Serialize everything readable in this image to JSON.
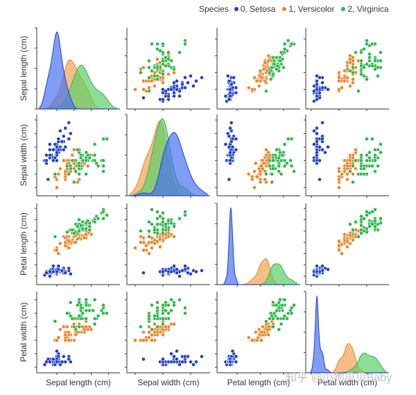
{
  "chart_data": {
    "type": "scatter",
    "subtype": "pairplot",
    "variables": [
      "Sepal length (cm)",
      "Sepal width (cm)",
      "Petal length (cm)",
      "Petal width (cm)"
    ],
    "diagonal": "kde",
    "legend": {
      "title": "Species",
      "placement": "top-right",
      "entries": [
        {
          "label": "0, Setosa",
          "color": "#1f3fcc"
        },
        {
          "label": "1, Versicolor",
          "color": "#e8862a"
        },
        {
          "label": "2, Virginica",
          "color": "#2db84a"
        }
      ]
    },
    "kde_fill_colors": [
      "#4a72f0",
      "#f4a154",
      "#5ccf6a"
    ],
    "axis_ranges": [
      [
        4.0,
        8.5
      ],
      [
        1.8,
        4.6
      ],
      [
        0.5,
        7.2
      ],
      [
        -0.1,
        2.7
      ]
    ],
    "series": [
      {
        "name": "0, Setosa",
        "points": [
          [
            5.1,
            3.5,
            1.4,
            0.2
          ],
          [
            4.9,
            3.0,
            1.4,
            0.2
          ],
          [
            4.7,
            3.2,
            1.3,
            0.2
          ],
          [
            4.6,
            3.1,
            1.5,
            0.2
          ],
          [
            5.0,
            3.6,
            1.4,
            0.2
          ],
          [
            5.4,
            3.9,
            1.7,
            0.4
          ],
          [
            4.6,
            3.4,
            1.4,
            0.3
          ],
          [
            5.0,
            3.4,
            1.5,
            0.2
          ],
          [
            4.4,
            2.9,
            1.4,
            0.2
          ],
          [
            4.9,
            3.1,
            1.5,
            0.1
          ],
          [
            5.4,
            3.7,
            1.5,
            0.2
          ],
          [
            4.8,
            3.4,
            1.6,
            0.2
          ],
          [
            4.8,
            3.0,
            1.4,
            0.1
          ],
          [
            4.3,
            3.0,
            1.1,
            0.1
          ],
          [
            5.8,
            4.0,
            1.2,
            0.2
          ],
          [
            5.7,
            4.4,
            1.5,
            0.4
          ],
          [
            5.4,
            3.9,
            1.3,
            0.4
          ],
          [
            5.1,
            3.5,
            1.4,
            0.3
          ],
          [
            5.7,
            3.8,
            1.7,
            0.3
          ],
          [
            5.1,
            3.8,
            1.5,
            0.3
          ],
          [
            5.4,
            3.4,
            1.7,
            0.2
          ],
          [
            5.1,
            3.7,
            1.5,
            0.4
          ],
          [
            4.6,
            3.6,
            1.0,
            0.2
          ],
          [
            5.1,
            3.3,
            1.7,
            0.5
          ],
          [
            4.8,
            3.4,
            1.9,
            0.2
          ],
          [
            5.0,
            3.0,
            1.6,
            0.2
          ],
          [
            5.0,
            3.4,
            1.6,
            0.4
          ],
          [
            5.2,
            3.5,
            1.5,
            0.2
          ],
          [
            5.2,
            3.4,
            1.4,
            0.2
          ],
          [
            4.7,
            3.2,
            1.6,
            0.2
          ],
          [
            4.8,
            3.1,
            1.6,
            0.2
          ],
          [
            5.4,
            3.4,
            1.5,
            0.4
          ],
          [
            5.2,
            4.1,
            1.5,
            0.1
          ],
          [
            5.5,
            4.2,
            1.4,
            0.2
          ],
          [
            4.9,
            3.1,
            1.5,
            0.2
          ],
          [
            5.0,
            3.2,
            1.2,
            0.2
          ],
          [
            5.5,
            3.5,
            1.3,
            0.2
          ],
          [
            4.9,
            3.6,
            1.4,
            0.1
          ],
          [
            4.4,
            3.0,
            1.3,
            0.2
          ],
          [
            5.1,
            3.4,
            1.5,
            0.2
          ],
          [
            5.0,
            3.5,
            1.3,
            0.3
          ],
          [
            4.5,
            2.3,
            1.3,
            0.3
          ],
          [
            4.4,
            3.2,
            1.3,
            0.2
          ],
          [
            5.0,
            3.5,
            1.6,
            0.6
          ],
          [
            5.1,
            3.8,
            1.9,
            0.4
          ],
          [
            4.8,
            3.0,
            1.4,
            0.3
          ],
          [
            5.1,
            3.8,
            1.6,
            0.2
          ],
          [
            4.6,
            3.2,
            1.4,
            0.2
          ],
          [
            5.3,
            3.7,
            1.5,
            0.2
          ],
          [
            5.0,
            3.3,
            1.4,
            0.2
          ]
        ]
      },
      {
        "name": "1, Versicolor",
        "points": [
          [
            7.0,
            3.2,
            4.7,
            1.4
          ],
          [
            6.4,
            3.2,
            4.5,
            1.5
          ],
          [
            6.9,
            3.1,
            4.9,
            1.5
          ],
          [
            5.5,
            2.3,
            4.0,
            1.3
          ],
          [
            6.5,
            2.8,
            4.6,
            1.5
          ],
          [
            5.7,
            2.8,
            4.5,
            1.3
          ],
          [
            6.3,
            3.3,
            4.7,
            1.6
          ],
          [
            4.9,
            2.4,
            3.3,
            1.0
          ],
          [
            6.6,
            2.9,
            4.6,
            1.3
          ],
          [
            5.2,
            2.7,
            3.9,
            1.4
          ],
          [
            5.0,
            2.0,
            3.5,
            1.0
          ],
          [
            5.9,
            3.0,
            4.2,
            1.5
          ],
          [
            6.0,
            2.2,
            4.0,
            1.0
          ],
          [
            6.1,
            2.9,
            4.7,
            1.4
          ],
          [
            5.6,
            2.9,
            3.6,
            1.3
          ],
          [
            6.7,
            3.1,
            4.4,
            1.4
          ],
          [
            5.6,
            3.0,
            4.5,
            1.5
          ],
          [
            5.8,
            2.7,
            4.1,
            1.0
          ],
          [
            6.2,
            2.2,
            4.5,
            1.5
          ],
          [
            5.6,
            2.5,
            3.9,
            1.1
          ],
          [
            5.9,
            3.2,
            4.8,
            1.8
          ],
          [
            6.1,
            2.8,
            4.0,
            1.3
          ],
          [
            6.3,
            2.5,
            4.9,
            1.5
          ],
          [
            6.1,
            2.8,
            4.7,
            1.2
          ],
          [
            6.4,
            2.9,
            4.3,
            1.3
          ],
          [
            6.6,
            3.0,
            4.4,
            1.4
          ],
          [
            6.8,
            2.8,
            4.8,
            1.4
          ],
          [
            6.7,
            3.0,
            5.0,
            1.7
          ],
          [
            6.0,
            2.9,
            4.5,
            1.5
          ],
          [
            5.7,
            2.6,
            3.5,
            1.0
          ],
          [
            5.5,
            2.4,
            3.8,
            1.1
          ],
          [
            5.5,
            2.4,
            3.7,
            1.0
          ],
          [
            5.8,
            2.7,
            3.9,
            1.2
          ],
          [
            6.0,
            2.7,
            5.1,
            1.6
          ],
          [
            5.4,
            3.0,
            4.5,
            1.5
          ],
          [
            6.0,
            3.4,
            4.5,
            1.6
          ],
          [
            6.7,
            3.1,
            4.7,
            1.5
          ],
          [
            6.3,
            2.3,
            4.4,
            1.3
          ],
          [
            5.6,
            3.0,
            4.1,
            1.3
          ],
          [
            5.5,
            2.5,
            4.0,
            1.3
          ],
          [
            5.5,
            2.6,
            4.4,
            1.2
          ],
          [
            6.1,
            3.0,
            4.6,
            1.4
          ],
          [
            5.8,
            2.6,
            4.0,
            1.2
          ],
          [
            5.0,
            2.3,
            3.3,
            1.0
          ],
          [
            5.6,
            2.7,
            4.2,
            1.3
          ],
          [
            5.7,
            3.0,
            4.2,
            1.2
          ],
          [
            5.7,
            2.9,
            4.2,
            1.3
          ],
          [
            6.2,
            2.9,
            4.3,
            1.3
          ],
          [
            5.1,
            2.5,
            3.0,
            1.1
          ],
          [
            5.7,
            2.8,
            4.1,
            1.3
          ]
        ]
      },
      {
        "name": "2, Virginica",
        "points": [
          [
            6.3,
            3.3,
            6.0,
            2.5
          ],
          [
            5.8,
            2.7,
            5.1,
            1.9
          ],
          [
            7.1,
            3.0,
            5.9,
            2.1
          ],
          [
            6.3,
            2.9,
            5.6,
            1.8
          ],
          [
            6.5,
            3.0,
            5.8,
            2.2
          ],
          [
            7.6,
            3.0,
            6.6,
            2.1
          ],
          [
            4.9,
            2.5,
            4.5,
            1.7
          ],
          [
            7.3,
            2.9,
            6.3,
            1.8
          ],
          [
            6.7,
            2.5,
            5.8,
            1.8
          ],
          [
            7.2,
            3.6,
            6.1,
            2.5
          ],
          [
            6.5,
            3.2,
            5.1,
            2.0
          ],
          [
            6.4,
            2.7,
            5.3,
            1.9
          ],
          [
            6.8,
            3.0,
            5.5,
            2.1
          ],
          [
            5.7,
            2.5,
            5.0,
            2.0
          ],
          [
            5.8,
            2.8,
            5.1,
            2.4
          ],
          [
            6.4,
            3.2,
            5.3,
            2.3
          ],
          [
            6.5,
            3.0,
            5.5,
            1.8
          ],
          [
            7.7,
            3.8,
            6.7,
            2.2
          ],
          [
            7.7,
            2.6,
            6.9,
            2.3
          ],
          [
            6.0,
            2.2,
            5.0,
            1.5
          ],
          [
            6.9,
            3.2,
            5.7,
            2.3
          ],
          [
            5.6,
            2.8,
            4.9,
            2.0
          ],
          [
            7.7,
            2.8,
            6.7,
            2.0
          ],
          [
            6.3,
            2.7,
            4.9,
            1.8
          ],
          [
            6.7,
            3.3,
            5.7,
            2.1
          ],
          [
            7.2,
            3.2,
            6.0,
            1.8
          ],
          [
            6.2,
            2.8,
            4.8,
            1.8
          ],
          [
            6.1,
            3.0,
            4.9,
            1.8
          ],
          [
            6.4,
            2.8,
            5.6,
            2.1
          ],
          [
            7.2,
            3.0,
            5.8,
            1.6
          ],
          [
            7.4,
            2.8,
            6.1,
            1.9
          ],
          [
            7.9,
            3.8,
            6.4,
            2.0
          ],
          [
            6.4,
            2.8,
            5.6,
            2.2
          ],
          [
            6.3,
            2.8,
            5.1,
            1.5
          ],
          [
            6.1,
            2.6,
            5.6,
            1.4
          ],
          [
            7.7,
            3.0,
            6.1,
            2.3
          ],
          [
            6.3,
            3.4,
            5.6,
            2.4
          ],
          [
            6.4,
            3.1,
            5.5,
            1.8
          ],
          [
            6.0,
            3.0,
            4.8,
            1.8
          ],
          [
            6.9,
            3.1,
            5.4,
            2.1
          ],
          [
            6.7,
            3.1,
            5.6,
            2.4
          ],
          [
            6.9,
            3.1,
            5.1,
            2.3
          ],
          [
            5.8,
            2.7,
            5.1,
            1.9
          ],
          [
            6.8,
            3.2,
            5.9,
            2.3
          ],
          [
            6.7,
            3.3,
            5.7,
            2.5
          ],
          [
            6.7,
            3.0,
            5.2,
            2.3
          ],
          [
            6.3,
            2.5,
            5.0,
            1.9
          ],
          [
            6.5,
            3.0,
            5.2,
            2.0
          ],
          [
            6.2,
            3.4,
            5.4,
            2.3
          ],
          [
            5.9,
            3.0,
            5.1,
            1.8
          ]
        ]
      }
    ],
    "tick_labels_visible": false,
    "grid": false
  },
  "watermark": "知乎 @小狗贝贝Baby"
}
